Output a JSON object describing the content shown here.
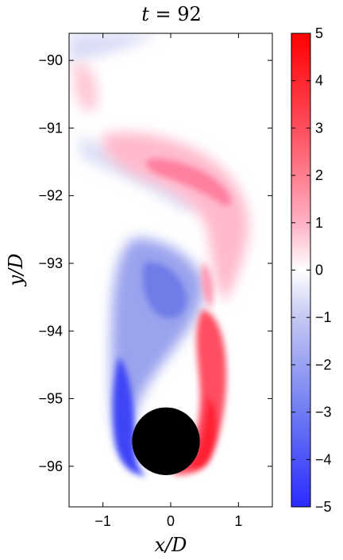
{
  "chart_data": {
    "type": "heatmap",
    "title": "t = 92",
    "title_var": "t",
    "title_value": "= 92",
    "xlabel": "x/D",
    "ylabel": "y/D",
    "xlim": [
      -1.5,
      1.5
    ],
    "ylim": [
      -96.6,
      -89.6
    ],
    "x_ticks": [
      -1,
      0,
      1
    ],
    "y_ticks": [
      -90,
      -91,
      -92,
      -93,
      -94,
      -95,
      -96
    ],
    "x_tick_labels": [
      "−1",
      "0",
      "1"
    ],
    "y_tick_labels": [
      "−90",
      "−91",
      "−92",
      "−93",
      "−94",
      "−95",
      "−96"
    ],
    "colorbar": {
      "min": -5,
      "max": 5,
      "ticks": [
        5,
        4,
        3,
        2,
        1,
        0,
        -1,
        -2,
        -3,
        -4,
        -5
      ],
      "tick_labels": [
        "5",
        "4",
        "3",
        "2",
        "1",
        "0",
        "−1",
        "−2",
        "−3",
        "−4",
        "−5"
      ],
      "colors": {
        "negative": "#2b2bff",
        "zero": "#ffffff",
        "positive": "#ff0000"
      }
    },
    "cylinder": {
      "center_x": -0.07,
      "center_y": -95.63,
      "diameter": 1.0,
      "color": "#000000"
    },
    "grid": false
  }
}
